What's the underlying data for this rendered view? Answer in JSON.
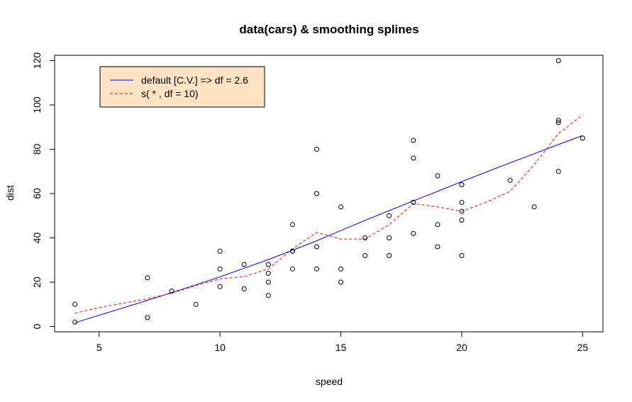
{
  "chart_data": {
    "type": "scatter",
    "title": "data(cars)  &  smoothing splines",
    "xlabel": "speed",
    "ylabel": "dist",
    "xlim": [
      3.16,
      25.84
    ],
    "ylim": [
      -2.4,
      122.4
    ],
    "xticks": [
      5,
      10,
      15,
      20,
      25
    ],
    "yticks": [
      0,
      20,
      40,
      60,
      80,
      100,
      120
    ],
    "grid": false,
    "legend_position": "top-left",
    "colors": {
      "points": "#000000",
      "series_default": "#0000ff",
      "series_df10": "#ff0000",
      "legend_bg": "#ffe4c4"
    },
    "points": [
      [
        4,
        2
      ],
      [
        4,
        10
      ],
      [
        7,
        4
      ],
      [
        7,
        22
      ],
      [
        8,
        16
      ],
      [
        9,
        10
      ],
      [
        10,
        18
      ],
      [
        10,
        26
      ],
      [
        10,
        34
      ],
      [
        11,
        17
      ],
      [
        11,
        28
      ],
      [
        12,
        14
      ],
      [
        12,
        20
      ],
      [
        12,
        24
      ],
      [
        12,
        28
      ],
      [
        13,
        26
      ],
      [
        13,
        34
      ],
      [
        13,
        34
      ],
      [
        13,
        46
      ],
      [
        14,
        26
      ],
      [
        14,
        36
      ],
      [
        14,
        60
      ],
      [
        14,
        80
      ],
      [
        15,
        20
      ],
      [
        15,
        26
      ],
      [
        15,
        54
      ],
      [
        16,
        32
      ],
      [
        16,
        40
      ],
      [
        17,
        32
      ],
      [
        17,
        40
      ],
      [
        17,
        50
      ],
      [
        18,
        42
      ],
      [
        18,
        56
      ],
      [
        18,
        76
      ],
      [
        18,
        84
      ],
      [
        19,
        36
      ],
      [
        19,
        46
      ],
      [
        19,
        68
      ],
      [
        20,
        32
      ],
      [
        20,
        48
      ],
      [
        20,
        52
      ],
      [
        20,
        56
      ],
      [
        20,
        64
      ],
      [
        22,
        66
      ],
      [
        23,
        54
      ],
      [
        24,
        70
      ],
      [
        24,
        92
      ],
      [
        24,
        93
      ],
      [
        24,
        120
      ],
      [
        25,
        85
      ]
    ],
    "series": [
      {
        "name": "default [C.V.] => df = 2.6",
        "style": "solid",
        "x": [
          4,
          7,
          8,
          9,
          10,
          11,
          12,
          13,
          14,
          15,
          16,
          17,
          18,
          19,
          20,
          22,
          23,
          24,
          25
        ],
        "y": [
          1.7,
          11.8,
          15.3,
          18.8,
          22.4,
          26.3,
          30.2,
          34.4,
          38.7,
          43.3,
          47.9,
          52.3,
          56.7,
          61.0,
          65.4,
          73.9,
          78.0,
          82.1,
          86.2
        ]
      },
      {
        "name": "s( * , df = 10)",
        "style": "dashed",
        "x": [
          4,
          5,
          6,
          7,
          8,
          9,
          10,
          11,
          12,
          13,
          14,
          15,
          16,
          17,
          18,
          19,
          20,
          21,
          22,
          23,
          24,
          25
        ],
        "y": [
          6,
          8.5,
          10.5,
          12.5,
          15,
          18.5,
          21.5,
          22.5,
          26,
          35,
          42.5,
          39.5,
          39.5,
          46,
          55.5,
          54,
          52,
          56,
          61,
          73,
          87,
          95.5
        ]
      }
    ]
  }
}
